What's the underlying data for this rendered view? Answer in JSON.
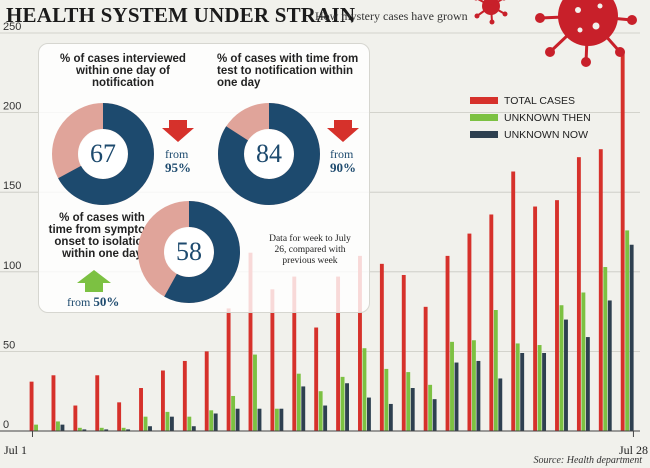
{
  "title": "HEALTH SYSTEM UNDER STRAIN",
  "subtitle": "How mystery cases have grown",
  "source": "Source: Health department",
  "colors": {
    "total": "#d6312b",
    "unknown_then": "#7cc142",
    "unknown_now": "#2e4050",
    "donut_dark": "#1d4a6e",
    "donut_light": "#e0a49a",
    "arrow_down": "#d6312b",
    "arrow_up": "#7cc142",
    "virus": "#c8202a"
  },
  "legend": {
    "total": "TOTAL CASES",
    "unknown_then": "UNKNOWN THEN",
    "unknown_now": "UNKNOWN NOW"
  },
  "stats": [
    {
      "label": "% of cases interviewed within one day of notification",
      "value": "67",
      "from": "from",
      "from_value": "95%",
      "arrow": "down"
    },
    {
      "label": "% of cases with time from test to notification within one day",
      "value": "84",
      "from": "from",
      "from_value": "90%",
      "arrow": "down"
    },
    {
      "label": "% of cases with time from symptom onset to isolation within one day",
      "value": "58",
      "from": "from",
      "from_value": "50%",
      "arrow": "up"
    }
  ],
  "note": "Data for week to July 26, compared with previous week",
  "chart_data": {
    "type": "bar",
    "x_tick_labels": [
      "Jul 1",
      "Jul 28"
    ],
    "ylim": [
      0,
      250
    ],
    "yticks": [
      0,
      50,
      100,
      150,
      200,
      250
    ],
    "grid": true,
    "legend_position": "top-right",
    "categories": [
      "Jul 1",
      "Jul 2",
      "Jul 3",
      "Jul 4",
      "Jul 5",
      "Jul 6",
      "Jul 7",
      "Jul 8",
      "Jul 9",
      "Jul 10",
      "Jul 11",
      "Jul 12",
      "Jul 13",
      "Jul 14",
      "Jul 15",
      "Jul 16",
      "Jul 17",
      "Jul 18",
      "Jul 19",
      "Jul 20",
      "Jul 21",
      "Jul 22",
      "Jul 23",
      "Jul 24",
      "Jul 25",
      "Jul 26",
      "Jul 27",
      "Jul 28"
    ],
    "series": [
      {
        "name": "TOTAL CASES",
        "values": [
          31,
          35,
          16,
          35,
          18,
          27,
          38,
          44,
          50,
          77,
          112,
          89,
          97,
          65,
          97,
          110,
          105,
          98,
          78,
          110,
          124,
          136,
          163,
          141,
          145,
          172,
          177,
          239
        ]
      },
      {
        "name": "UNKNOWN THEN",
        "values": [
          4,
          6,
          2,
          2,
          2,
          9,
          12,
          9,
          13,
          22,
          48,
          14,
          36,
          25,
          34,
          52,
          39,
          37,
          29,
          56,
          57,
          76,
          55,
          54,
          79,
          87,
          103,
          126
        ]
      },
      {
        "name": "UNKNOWN NOW",
        "values": [
          0,
          4,
          1,
          1,
          1,
          3,
          9,
          3,
          11,
          14,
          14,
          14,
          28,
          16,
          30,
          21,
          17,
          27,
          20,
          43,
          44,
          33,
          49,
          49,
          70,
          59,
          82,
          117
        ]
      }
    ]
  }
}
